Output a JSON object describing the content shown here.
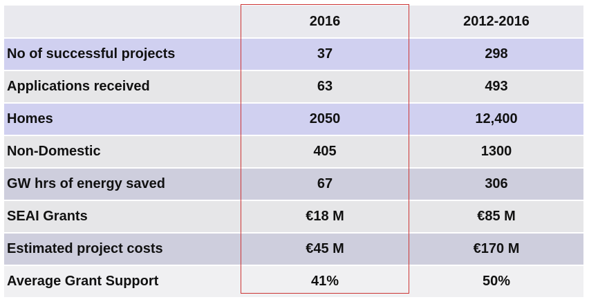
{
  "table": {
    "headers": [
      "",
      "2016",
      "2012-2016"
    ],
    "rows": [
      {
        "label": "No of successful projects",
        "v2016": "37",
        "v2012_2016": "298"
      },
      {
        "label": "Applications received",
        "v2016": "63",
        "v2012_2016": "493"
      },
      {
        "label": "Homes",
        "v2016": "2050",
        "v2012_2016": "12,400"
      },
      {
        "label": "Non-Domestic",
        "v2016": "405",
        "v2012_2016": "1300"
      },
      {
        "label": "GW hrs of energy saved",
        "v2016": "67",
        "v2012_2016": "306"
      },
      {
        "label": "SEAI Grants",
        "v2016": "€18 M",
        "v2012_2016": "€85 M"
      },
      {
        "label": "Estimated project costs",
        "v2016": "€45 M",
        "v2012_2016": "€170 M"
      },
      {
        "label": "Average Grant Support",
        "v2016": "41%",
        "v2012_2016": "50%"
      }
    ]
  },
  "colors": {
    "lavender_row": "#d0d0f0",
    "grey_row": "#e6e6e8",
    "mauve_row": "#cecedd",
    "light_row": "#f0f0f2",
    "highlight_border": "#cc3333"
  }
}
